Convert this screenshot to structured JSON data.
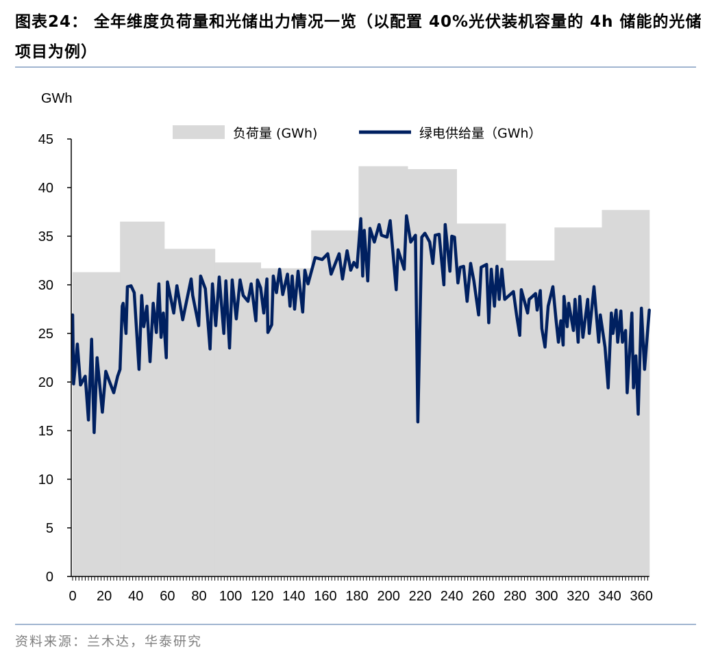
{
  "header": {
    "title": "图表24：  全年维度负荷量和光储出力情况一览（以配置 40%光伏装机容量的 4h 储能的光储项目为例）"
  },
  "footer": {
    "source": "资料来源：兰木达，华泰研究"
  },
  "colors": {
    "load_fill": "#d9d9d9",
    "supply_line": "#002060",
    "rule": "#9fb4cf"
  },
  "chart_data": {
    "type": "area+line",
    "title": "",
    "ylabel": "GWh",
    "xlabel": "",
    "xlim": [
      0,
      365
    ],
    "ylim": [
      0,
      45
    ],
    "x_ticks": [
      0,
      20,
      40,
      60,
      80,
      100,
      120,
      140,
      160,
      180,
      200,
      220,
      240,
      260,
      280,
      300,
      320,
      340,
      360
    ],
    "y_ticks": [
      0,
      5,
      10,
      15,
      20,
      25,
      30,
      35,
      40,
      45
    ],
    "grid": false,
    "legend_position": "top",
    "series": [
      {
        "name": "负荷量 (GWh)",
        "type": "step-area",
        "steps": [
          {
            "from": 0,
            "to": 30,
            "value": 31.3
          },
          {
            "from": 30,
            "to": 58,
            "value": 36.5
          },
          {
            "from": 58,
            "to": 90,
            "value": 33.7
          },
          {
            "from": 90,
            "to": 119,
            "value": 32.3
          },
          {
            "from": 119,
            "to": 151,
            "value": 31.7
          },
          {
            "from": 151,
            "to": 181,
            "value": 35.6
          },
          {
            "from": 181,
            "to": 212,
            "value": 42.2
          },
          {
            "from": 212,
            "to": 243,
            "value": 41.9
          },
          {
            "from": 243,
            "to": 274,
            "value": 36.3
          },
          {
            "from": 274,
            "to": 305,
            "value": 32.5
          },
          {
            "from": 305,
            "to": 335,
            "value": 35.9
          },
          {
            "from": 335,
            "to": 365,
            "value": 37.7
          }
        ]
      },
      {
        "name": "绿电供给量（GWh）",
        "type": "line",
        "x": [
          0,
          0.6,
          3,
          5,
          8,
          10,
          12,
          13.6,
          15.5,
          18.8,
          21,
          23,
          26,
          28.5,
          30,
          31.4,
          32,
          33.8,
          34.7,
          37,
          39,
          42,
          43.7,
          45,
          47,
          49,
          51,
          53,
          54.6,
          56,
          57.4,
          59.3,
          60,
          64,
          66,
          69.7,
          75,
          76,
          79.8,
          81,
          84,
          87,
          88.5,
          90.6,
          92.8,
          95.7,
          97,
          99.3,
          101,
          103.6,
          106,
          108,
          111,
          113,
          116,
          117,
          119,
          121,
          123,
          123.6,
          126,
          127,
          129,
          131,
          133,
          136,
          137.6,
          139,
          140.5,
          142.7,
          145.6,
          147,
          149,
          153.5,
          158,
          161.5,
          163.6,
          168.7,
          170.8,
          173.7,
          176,
          178,
          180,
          182.4,
          183.6,
          184.6,
          186.8,
          188.2,
          191,
          194,
          195.5,
          199,
          201,
          204.8,
          206,
          209.9,
          211.3,
          214,
          217,
          218.5,
          221,
          223,
          226,
          228,
          229.5,
          232,
          235,
          235.8,
          238.8,
          240,
          241.7,
          243.9,
          245.3,
          247.5,
          249.7,
          251.9,
          254,
          257,
          258.6,
          262,
          263.4,
          265,
          267,
          268.6,
          270,
          271.7,
          273.5,
          279,
          281,
          283,
          284,
          286,
          288,
          289,
          293,
          294,
          296,
          297,
          299,
          301,
          304,
          306,
          307.5,
          309,
          310.5,
          311,
          313,
          314,
          317,
          318,
          320,
          321,
          323,
          326,
          327,
          330,
          333,
          334,
          337,
          339,
          341,
          342,
          344,
          345,
          347,
          348,
          350,
          351,
          354,
          355,
          356.5,
          358,
          360,
          362,
          365
        ],
        "y": [
          26.9,
          19.8,
          23.9,
          19.7,
          20.6,
          16.1,
          24.4,
          14.8,
          22.5,
          16.9,
          21.1,
          20.2,
          18.9,
          20.6,
          21.3,
          27.8,
          28.1,
          25.0,
          29.8,
          29.9,
          29.2,
          21.3,
          28.9,
          25.7,
          27.8,
          22.1,
          28.1,
          25.1,
          30.1,
          24.6,
          27.1,
          22.5,
          30.3,
          27.1,
          29.9,
          26.4,
          30.6,
          28.9,
          25.8,
          30.9,
          29.6,
          23.4,
          30.1,
          25.8,
          30.8,
          25.0,
          30.4,
          23.5,
          30.5,
          26.5,
          30.5,
          28.9,
          28.3,
          30.1,
          26.3,
          30.5,
          29.7,
          27.1,
          30.6,
          25.1,
          25.9,
          30.9,
          29.2,
          31.6,
          29.0,
          31.1,
          27.8,
          30.9,
          27.5,
          31.4,
          27.2,
          31.5,
          30.1,
          32.8,
          32.6,
          33.2,
          31.1,
          33.2,
          30.6,
          33.5,
          31.5,
          32.3,
          31.8,
          36.8,
          30.9,
          35.6,
          30.4,
          35.8,
          34.4,
          36.2,
          35.1,
          34.9,
          36.6,
          29.5,
          33.6,
          31.6,
          37.1,
          34.4,
          35.1,
          15.9,
          34.9,
          35.3,
          34.4,
          32.2,
          35.1,
          35.2,
          30.0,
          36.2,
          31.4,
          35.0,
          34.9,
          30.2,
          31.8,
          31.9,
          28.3,
          32.2,
          30.4,
          26.9,
          31.8,
          32.1,
          26.1,
          31.6,
          27.8,
          31.9,
          28.5,
          31.6,
          28.5,
          29.3,
          26.9,
          24.8,
          29.5,
          28.3,
          27.1,
          28.5,
          29.1,
          27.4,
          29.4,
          25.5,
          23.6,
          27.8,
          29.8,
          26.4,
          24.1,
          26.3,
          23.8,
          28.8,
          25.7,
          28.1,
          25.3,
          28.5,
          24.1,
          28.8,
          24.6,
          28.5,
          25.0,
          29.8,
          24.1,
          26.9,
          23.6,
          19.4,
          27.1,
          25.0,
          27.4,
          24.1,
          27.3,
          24.1,
          25.3,
          18.9,
          27.1,
          19.4,
          22.7,
          16.7,
          27.6,
          21.3,
          27.4
        ]
      }
    ]
  }
}
